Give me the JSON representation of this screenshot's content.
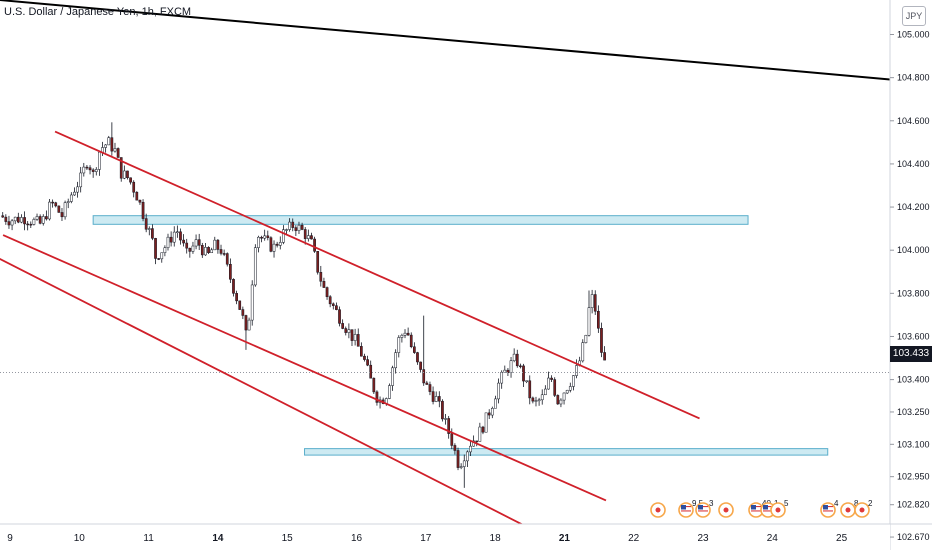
{
  "header": {
    "title": "U.S. Dollar / Japanese Yen, 1h, FXCM",
    "currency_button": "JPY"
  },
  "chart_data": {
    "type": "candlestick",
    "title": "U.S. Dollar / Japanese Yen, 1h, FXCM",
    "current_price": "103.433",
    "y_ticks": [
      "105.000",
      "104.800",
      "104.600",
      "104.400",
      "104.200",
      "104.000",
      "103.800",
      "103.600",
      "103.400",
      "103.250",
      "103.100",
      "102.950",
      "102.820",
      "102.670"
    ],
    "x_ticks": [
      "9",
      "10",
      "11",
      "14",
      "15",
      "16",
      "17",
      "18",
      "21",
      "22",
      "23",
      "24",
      "25"
    ],
    "x_ticks_bold": [
      "14",
      "21"
    ],
    "ylim": [
      102.61,
      105.16
    ],
    "x_day_index": {
      "9": 0,
      "10": 1,
      "11": 2,
      "14": 3,
      "15": 4,
      "16": 5,
      "17": 6,
      "18": 7,
      "21": 8,
      "22": 9,
      "23": 10,
      "24": 11,
      "25": 12
    },
    "price_path": [
      [
        -0.15,
        104.16
      ],
      [
        0.0,
        104.14
      ],
      [
        0.2,
        104.15
      ],
      [
        0.45,
        104.12
      ],
      [
        0.6,
        104.22
      ],
      [
        0.75,
        104.16
      ],
      [
        0.9,
        104.27
      ],
      [
        1.02,
        104.33
      ],
      [
        1.12,
        104.42
      ],
      [
        1.2,
        104.35
      ],
      [
        1.3,
        104.47
      ],
      [
        1.42,
        104.5
      ],
      [
        1.52,
        104.46
      ],
      [
        1.6,
        104.36
      ],
      [
        1.72,
        104.33
      ],
      [
        1.85,
        104.24
      ],
      [
        1.95,
        104.14
      ],
      [
        2.05,
        104.05
      ],
      [
        2.1,
        103.97
      ],
      [
        2.25,
        104.02
      ],
      [
        2.4,
        104.1
      ],
      [
        2.55,
        103.98
      ],
      [
        2.7,
        104.04
      ],
      [
        2.85,
        103.97
      ],
      [
        2.95,
        104.02
      ],
      [
        3.05,
        104.0
      ],
      [
        3.15,
        103.9
      ],
      [
        3.25,
        103.8
      ],
      [
        3.35,
        103.7
      ],
      [
        3.42,
        103.58
      ],
      [
        3.5,
        103.88
      ],
      [
        3.55,
        104.08
      ],
      [
        3.65,
        104.05
      ],
      [
        3.8,
        104.01
      ],
      [
        3.95,
        104.08
      ],
      [
        4.1,
        104.12
      ],
      [
        4.25,
        104.08
      ],
      [
        4.35,
        104.03
      ],
      [
        4.45,
        103.9
      ],
      [
        4.55,
        103.8
      ],
      [
        4.7,
        103.72
      ],
      [
        4.85,
        103.64
      ],
      [
        4.98,
        103.58
      ],
      [
        5.1,
        103.5
      ],
      [
        5.2,
        103.4
      ],
      [
        5.32,
        103.3
      ],
      [
        5.42,
        103.32
      ],
      [
        5.5,
        103.43
      ],
      [
        5.6,
        103.58
      ],
      [
        5.72,
        103.64
      ],
      [
        5.8,
        103.54
      ],
      [
        5.9,
        103.45
      ],
      [
        6.02,
        103.36
      ],
      [
        6.15,
        103.31
      ],
      [
        6.28,
        103.2
      ],
      [
        6.38,
        103.11
      ],
      [
        6.48,
        103.0
      ],
      [
        6.55,
        103.05
      ],
      [
        6.65,
        103.11
      ],
      [
        6.75,
        103.14
      ],
      [
        6.85,
        103.2
      ],
      [
        6.95,
        103.28
      ],
      [
        7.05,
        103.38
      ],
      [
        7.15,
        103.44
      ],
      [
        7.3,
        103.5
      ],
      [
        7.42,
        103.4
      ],
      [
        7.55,
        103.28
      ],
      [
        7.7,
        103.32
      ],
      [
        7.8,
        103.42
      ],
      [
        7.9,
        103.3
      ],
      [
        8.0,
        103.35
      ],
      [
        8.1,
        103.4
      ],
      [
        8.2,
        103.46
      ],
      [
        8.32,
        103.62
      ],
      [
        8.38,
        103.8
      ],
      [
        8.45,
        103.72
      ],
      [
        8.52,
        103.55
      ],
      [
        8.62,
        103.43
      ]
    ],
    "annotations": {
      "black_trendline": [
        [
          -0.15,
          105.16
        ],
        [
          12.75,
          104.79
        ]
      ],
      "channel_top": [
        [
          0.65,
          104.55
        ],
        [
          9.95,
          103.22
        ]
      ],
      "channel_middle": [
        [
          -0.1,
          104.07
        ],
        [
          8.6,
          102.84
        ]
      ],
      "channel_bottom": [
        [
          -0.15,
          103.96
        ],
        [
          7.75,
          102.67
        ]
      ],
      "resistance_zone": {
        "x0": 1.2,
        "x1": 10.65,
        "y0": 104.12,
        "y1": 104.16
      },
      "support_zone": {
        "x0": 4.25,
        "x1": 11.8,
        "y0": 103.05,
        "y1": 103.08
      }
    },
    "event_markers": [
      {
        "icon": "ring",
        "label": ""
      },
      {
        "icon": "flag",
        "label": "9.5"
      },
      {
        "icon": "flag",
        "label": "3"
      },
      {
        "icon": "ring",
        "label": ""
      },
      {
        "icon": "flag",
        "label": "40"
      },
      {
        "icon": "flag",
        "label": "1"
      },
      {
        "icon": "ring",
        "label": "5"
      },
      {
        "icon": "flag",
        "label": "4"
      },
      {
        "icon": "ring",
        "label": "8"
      },
      {
        "icon": "ring",
        "label": "2"
      }
    ],
    "colors": {
      "candle_up": "#ffffff",
      "candle_down": "#7a1f1f",
      "candle_outline": "#131722",
      "channel": "#d0202a",
      "trendline": "#000000",
      "zone_fill": "#cdeaf2",
      "zone_border": "#5aaecb"
    }
  }
}
